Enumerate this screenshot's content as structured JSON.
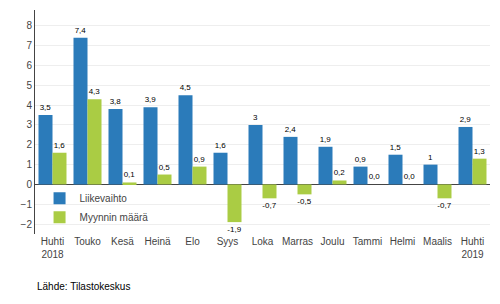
{
  "chart_data": {
    "type": "bar",
    "categories": [
      "Huhti\n2018",
      "Touko",
      "Kesä",
      "Heinä",
      "Elo",
      "Syys",
      "Loka",
      "Marras",
      "Joulu",
      "Tammi",
      "Helmi",
      "Maalis",
      "Huhti\n2019"
    ],
    "series": [
      {
        "name": "Liikevaihto",
        "color": "#2b7bba",
        "values": [
          3.5,
          7.4,
          3.8,
          3.9,
          4.5,
          1.6,
          3.0,
          2.4,
          1.9,
          0.9,
          1.5,
          1.0,
          2.9
        ],
        "value_labels": [
          "3,5",
          "7,4",
          "3,8",
          "3,9",
          "4,5",
          "1,6",
          "3",
          "2,4",
          "1,9",
          "0,9",
          "1,5",
          "1",
          "2,9"
        ]
      },
      {
        "name": "Myynnin määrä",
        "color": "#aacc44",
        "values": [
          1.6,
          4.3,
          0.1,
          0.5,
          0.9,
          -1.9,
          -0.7,
          -0.5,
          0.2,
          0.0,
          0.0,
          -0.7,
          1.3
        ],
        "value_labels": [
          "1,6",
          "4,3",
          "0,1",
          "0,5",
          "0,9",
          "-1,9",
          "-0,7",
          "-0,5",
          "0,2",
          "0,0",
          "0,0",
          "-0,7",
          "1,3"
        ]
      }
    ],
    "ylim": [
      -2.5,
      8.8
    ],
    "yticks": [
      -2,
      -1,
      0,
      1,
      2,
      3,
      4,
      5,
      6,
      7,
      8
    ],
    "grid": true,
    "legend": "lower left",
    "data_labels": true,
    "annotations": [
      "Lähde: Tilastokeskus"
    ]
  }
}
